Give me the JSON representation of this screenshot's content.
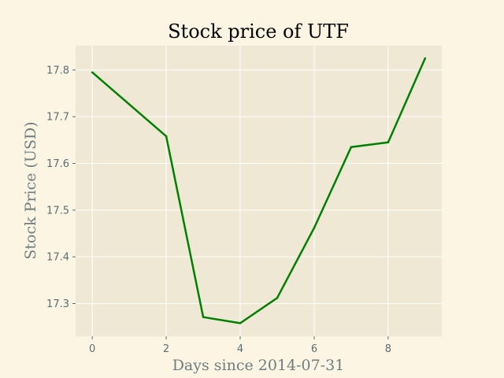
{
  "chart_data": {
    "type": "line",
    "title": "Stock price of UTF",
    "xlabel": "Days since 2014-07-31",
    "ylabel": "Stock Price (USD)",
    "x": [
      0,
      2,
      3,
      4,
      5,
      6,
      7,
      8,
      9
    ],
    "series": [
      {
        "values": [
          17.795,
          17.658,
          17.271,
          17.258,
          17.312,
          17.462,
          17.635,
          17.645,
          17.825
        ],
        "color": "#008000"
      }
    ],
    "xlim": [
      -0.45,
      9.45
    ],
    "ylim": [
      17.23,
      17.852
    ],
    "xticks": [
      0,
      2,
      4,
      6,
      8
    ],
    "yticks": [
      17.3,
      17.4,
      17.5,
      17.6,
      17.7,
      17.8
    ],
    "xtick_labels": [
      "0",
      "2",
      "4",
      "6",
      "8"
    ],
    "ytick_labels": [
      "17.3",
      "17.4",
      "17.5",
      "17.6",
      "17.7",
      "17.8"
    ],
    "grid": true,
    "legend": "none",
    "background_color": "#fcf5e3",
    "plot_background_color": "#eee8d5",
    "grid_color": "#ffffff"
  }
}
